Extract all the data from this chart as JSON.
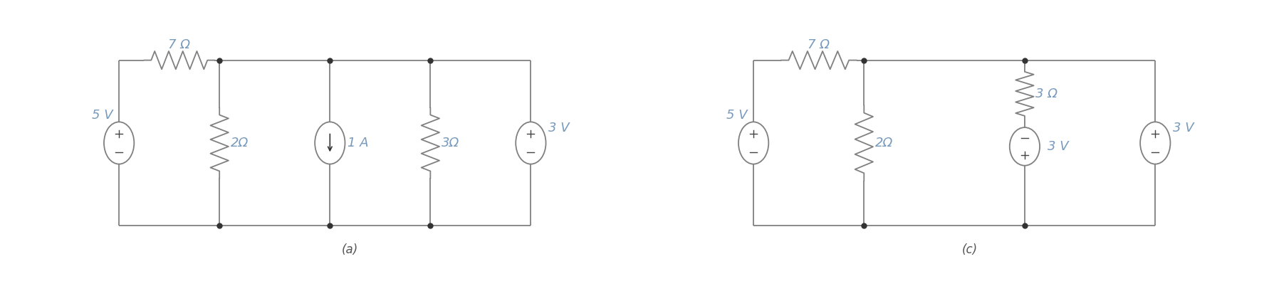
{
  "fig_width": 17.82,
  "fig_height": 4.09,
  "dpi": 100,
  "bg_color": "#ffffff",
  "line_color": "#808080",
  "text_color": "#7799bb",
  "lw": 1.3,
  "dot_size": 5,
  "label_a": "(a)",
  "label_c": "(c)",
  "circuit_a": {
    "title_7ohm": "7 Ω",
    "label_5v": "5 V",
    "label_2ohm": "2Ω",
    "label_1a": "1 A",
    "label_3ohm": "3Ω",
    "label_3v_right": "3 V"
  },
  "circuit_c": {
    "title_7ohm": "7 Ω",
    "label_5v": "5 V",
    "label_2ohm": "2Ω",
    "label_3ohm": "3 Ω",
    "label_3v_mid": "3 V",
    "label_3v_right": "3 V"
  }
}
